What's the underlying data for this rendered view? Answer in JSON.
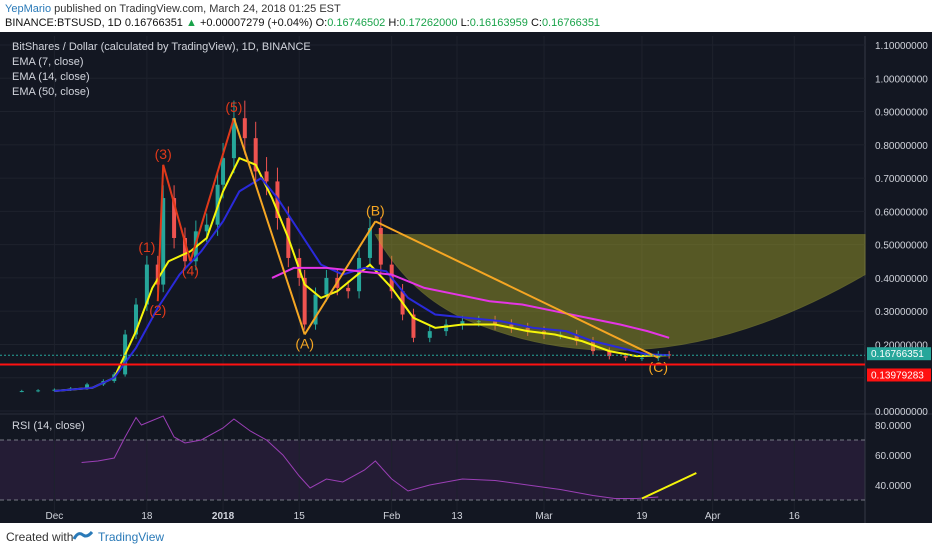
{
  "header": {
    "author": "YepMario",
    "published": "published on TradingView.com, March 24, 2018 01:25 EST",
    "symbol": "BINANCE:BTSUSD, 1D",
    "last": "0.16766351",
    "arrow": "▲",
    "change": "+0.00007279 (+0.04%)",
    "o_label": "O:",
    "o_value": "0.16746502",
    "h_label": "H:",
    "h_value": "0.17262000",
    "l_label": "L:",
    "l_value": "0.16163959",
    "c_label": "C:",
    "c_value": "0.16766351"
  },
  "legend": {
    "title": "BitShares / Dollar (calculated by TradingView), 1D, BINANCE",
    "ema7": "EMA (7, close)",
    "ema14": "EMA (14, close)",
    "ema50": "EMA (50, close)",
    "rsi": "RSI (14, close)"
  },
  "footer": {
    "created": "Created with",
    "brand": "TradingView"
  },
  "colors": {
    "background": "#131722",
    "ema7": "#f5f50a",
    "ema14": "#2a2adb",
    "ema50": "#e535e5",
    "up": "#26a69a",
    "down": "#ef5350",
    "rsi": "#9b3fb6",
    "wave": "#e0391a",
    "abc": "#f5a623",
    "support": "#ff1111"
  },
  "chart_data": {
    "type": "candlestick",
    "title": "BitShares / Dollar (calculated by TradingView), 1D, BINANCE",
    "y_ticks": [
      "1.10000000",
      "1.00000000",
      "0.90000000",
      "0.80000000",
      "0.70000000",
      "0.60000000",
      "0.50000000",
      "0.40000000",
      "0.30000000",
      "0.20000000",
      "0.10000000",
      "0.00000000"
    ],
    "y_range": [
      0,
      1.1
    ],
    "x_ticks": [
      {
        "label": "Dec",
        "date": "2017-12-01"
      },
      {
        "label": "18",
        "date": "2017-12-18"
      },
      {
        "label": "2018",
        "date": "2018-01-01"
      },
      {
        "label": "15",
        "date": "2018-01-15"
      },
      {
        "label": "Feb",
        "date": "2018-02-01"
      },
      {
        "label": "13",
        "date": "2018-02-13"
      },
      {
        "label": "Mar",
        "date": "2018-03-01"
      },
      {
        "label": "19",
        "date": "2018-03-19"
      },
      {
        "label": "Apr",
        "date": "2018-04-01"
      },
      {
        "label": "16",
        "date": "2018-04-16"
      }
    ],
    "x_range": [
      "2017-11-21",
      "2018-04-29"
    ],
    "price_markers": [
      {
        "label": "0.16766351",
        "value": 0.16766351
      },
      {
        "label": "0.13979283",
        "value": 0.13979283
      }
    ],
    "support_level": 0.1398,
    "close_series": [
      [
        "2017-11-25",
        0.06
      ],
      [
        "2017-11-28",
        0.062
      ],
      [
        "2017-12-01",
        0.064
      ],
      [
        "2017-12-04",
        0.068
      ],
      [
        "2017-12-07",
        0.08
      ],
      [
        "2017-12-10",
        0.09
      ],
      [
        "2017-12-12",
        0.11
      ],
      [
        "2017-12-14",
        0.23
      ],
      [
        "2017-12-16",
        0.32
      ],
      [
        "2017-12-18",
        0.44
      ],
      [
        "2017-12-20",
        0.38
      ],
      [
        "2017-12-21",
        0.64
      ],
      [
        "2017-12-23",
        0.52
      ],
      [
        "2017-12-25",
        0.45
      ],
      [
        "2017-12-27",
        0.54
      ],
      [
        "2017-12-29",
        0.56
      ],
      [
        "2017-12-31",
        0.68
      ],
      [
        "2018-01-01",
        0.76
      ],
      [
        "2018-01-03",
        0.88
      ],
      [
        "2018-01-05",
        0.82
      ],
      [
        "2018-01-07",
        0.72
      ],
      [
        "2018-01-09",
        0.69
      ],
      [
        "2018-01-11",
        0.58
      ],
      [
        "2018-01-13",
        0.46
      ],
      [
        "2018-01-15",
        0.4
      ],
      [
        "2018-01-16",
        0.26
      ],
      [
        "2018-01-18",
        0.35
      ],
      [
        "2018-01-20",
        0.4
      ],
      [
        "2018-01-22",
        0.37
      ],
      [
        "2018-01-24",
        0.36
      ],
      [
        "2018-01-26",
        0.46
      ],
      [
        "2018-01-28",
        0.55
      ],
      [
        "2018-01-30",
        0.44
      ],
      [
        "2018-02-01",
        0.36
      ],
      [
        "2018-02-03",
        0.29
      ],
      [
        "2018-02-05",
        0.22
      ],
      [
        "2018-02-08",
        0.24
      ],
      [
        "2018-02-11",
        0.26
      ],
      [
        "2018-02-14",
        0.27
      ],
      [
        "2018-02-17",
        0.27
      ],
      [
        "2018-02-20",
        0.26
      ],
      [
        "2018-02-23",
        0.25
      ],
      [
        "2018-02-26",
        0.24
      ],
      [
        "2018-03-01",
        0.23
      ],
      [
        "2018-03-04",
        0.23
      ],
      [
        "2018-03-07",
        0.21
      ],
      [
        "2018-03-10",
        0.18
      ],
      [
        "2018-03-13",
        0.165
      ],
      [
        "2018-03-16",
        0.16
      ],
      [
        "2018-03-19",
        0.16
      ],
      [
        "2018-03-22",
        0.17
      ],
      [
        "2018-03-24",
        0.1677
      ]
    ],
    "series": [
      {
        "name": "EMA (7, close)",
        "points": [
          [
            "2017-12-01",
            0.06
          ],
          [
            "2017-12-08",
            0.07
          ],
          [
            "2017-12-12",
            0.1
          ],
          [
            "2017-12-16",
            0.24
          ],
          [
            "2017-12-19",
            0.37
          ],
          [
            "2017-12-22",
            0.45
          ],
          [
            "2017-12-26",
            0.48
          ],
          [
            "2017-12-29",
            0.52
          ],
          [
            "2018-01-01",
            0.66
          ],
          [
            "2018-01-04",
            0.76
          ],
          [
            "2018-01-07",
            0.74
          ],
          [
            "2018-01-10",
            0.64
          ],
          [
            "2018-01-13",
            0.52
          ],
          [
            "2018-01-16",
            0.38
          ],
          [
            "2018-01-19",
            0.34
          ],
          [
            "2018-01-22",
            0.36
          ],
          [
            "2018-01-25",
            0.4
          ],
          [
            "2018-01-28",
            0.44
          ],
          [
            "2018-02-01",
            0.37
          ],
          [
            "2018-02-05",
            0.28
          ],
          [
            "2018-02-09",
            0.25
          ],
          [
            "2018-02-14",
            0.26
          ],
          [
            "2018-02-20",
            0.26
          ],
          [
            "2018-02-26",
            0.24
          ],
          [
            "2018-03-03",
            0.23
          ],
          [
            "2018-03-08",
            0.21
          ],
          [
            "2018-03-13",
            0.18
          ],
          [
            "2018-03-18",
            0.165
          ],
          [
            "2018-03-24",
            0.168
          ]
        ]
      },
      {
        "name": "EMA (14, close)",
        "points": [
          [
            "2017-12-01",
            0.06
          ],
          [
            "2017-12-08",
            0.07
          ],
          [
            "2017-12-12",
            0.1
          ],
          [
            "2017-12-16",
            0.19
          ],
          [
            "2017-12-20",
            0.31
          ],
          [
            "2017-12-24",
            0.41
          ],
          [
            "2017-12-28",
            0.48
          ],
          [
            "2018-01-01",
            0.57
          ],
          [
            "2018-01-04",
            0.66
          ],
          [
            "2018-01-08",
            0.7
          ],
          [
            "2018-01-11",
            0.64
          ],
          [
            "2018-01-15",
            0.54
          ],
          [
            "2018-01-19",
            0.44
          ],
          [
            "2018-01-23",
            0.41
          ],
          [
            "2018-01-27",
            0.43
          ],
          [
            "2018-01-31",
            0.42
          ],
          [
            "2018-02-04",
            0.34
          ],
          [
            "2018-02-09",
            0.29
          ],
          [
            "2018-02-15",
            0.28
          ],
          [
            "2018-02-21",
            0.27
          ],
          [
            "2018-02-27",
            0.25
          ],
          [
            "2018-03-05",
            0.24
          ],
          [
            "2018-03-10",
            0.21
          ],
          [
            "2018-03-15",
            0.19
          ],
          [
            "2018-03-20",
            0.17
          ],
          [
            "2018-03-24",
            0.168
          ]
        ]
      },
      {
        "name": "EMA (50, close)",
        "points": [
          [
            "2018-01-10",
            0.4
          ],
          [
            "2018-01-14",
            0.43
          ],
          [
            "2018-01-20",
            0.43
          ],
          [
            "2018-01-26",
            0.42
          ],
          [
            "2018-02-01",
            0.41
          ],
          [
            "2018-02-07",
            0.37
          ],
          [
            "2018-02-13",
            0.35
          ],
          [
            "2018-02-19",
            0.33
          ],
          [
            "2018-02-25",
            0.32
          ],
          [
            "2018-03-03",
            0.3
          ],
          [
            "2018-03-09",
            0.28
          ],
          [
            "2018-03-15",
            0.26
          ],
          [
            "2018-03-20",
            0.24
          ],
          [
            "2018-03-24",
            0.22
          ]
        ]
      }
    ],
    "wave_labels": [
      {
        "label": "(1)",
        "date": "2017-12-18",
        "value": 0.46
      },
      {
        "label": "(2)",
        "date": "2017-12-20",
        "value": 0.33
      },
      {
        "label": "(3)",
        "date": "2017-12-21",
        "value": 0.74
      },
      {
        "label": "(4)",
        "date": "2017-12-26",
        "value": 0.45
      },
      {
        "label": "(5)",
        "date": "2018-01-03",
        "value": 0.88
      },
      {
        "label": "(A)",
        "date": "2018-01-16",
        "value": 0.23
      },
      {
        "label": "(B)",
        "date": "2018-01-29",
        "value": 0.57
      },
      {
        "label": "(C)",
        "date": "2018-03-22",
        "value": 0.16
      }
    ],
    "rsi": {
      "name": "RSI (14, close)",
      "y_ticks": [
        "80.0000",
        "60.0000",
        "40.0000"
      ],
      "levels": [
        70,
        30
      ],
      "points": [
        [
          "2017-12-06",
          55
        ],
        [
          "2017-12-09",
          56
        ],
        [
          "2017-12-12",
          58
        ],
        [
          "2017-12-14",
          72
        ],
        [
          "2017-12-16",
          85
        ],
        [
          "2017-12-17",
          80
        ],
        [
          "2017-12-19",
          83
        ],
        [
          "2017-12-21",
          86
        ],
        [
          "2017-12-23",
          72
        ],
        [
          "2017-12-25",
          68
        ],
        [
          "2017-12-28",
          70
        ],
        [
          "2018-01-01",
          78
        ],
        [
          "2018-01-03",
          84
        ],
        [
          "2018-01-06",
          76
        ],
        [
          "2018-01-09",
          70
        ],
        [
          "2018-01-12",
          60
        ],
        [
          "2018-01-15",
          46
        ],
        [
          "2018-01-17",
          38
        ],
        [
          "2018-01-20",
          44
        ],
        [
          "2018-01-23",
          42
        ],
        [
          "2018-01-27",
          50
        ],
        [
          "2018-01-29",
          56
        ],
        [
          "2018-02-01",
          44
        ],
        [
          "2018-02-04",
          36
        ],
        [
          "2018-02-08",
          40
        ],
        [
          "2018-02-14",
          44
        ],
        [
          "2018-02-20",
          43
        ],
        [
          "2018-02-26",
          40
        ],
        [
          "2018-03-04",
          37
        ],
        [
          "2018-03-10",
          33
        ],
        [
          "2018-03-14",
          31
        ],
        [
          "2018-03-18",
          31
        ],
        [
          "2018-03-22",
          32
        ]
      ],
      "trend_line": [
        [
          "2018-03-19",
          31
        ],
        [
          "2018-03-29",
          48
        ]
      ]
    }
  }
}
